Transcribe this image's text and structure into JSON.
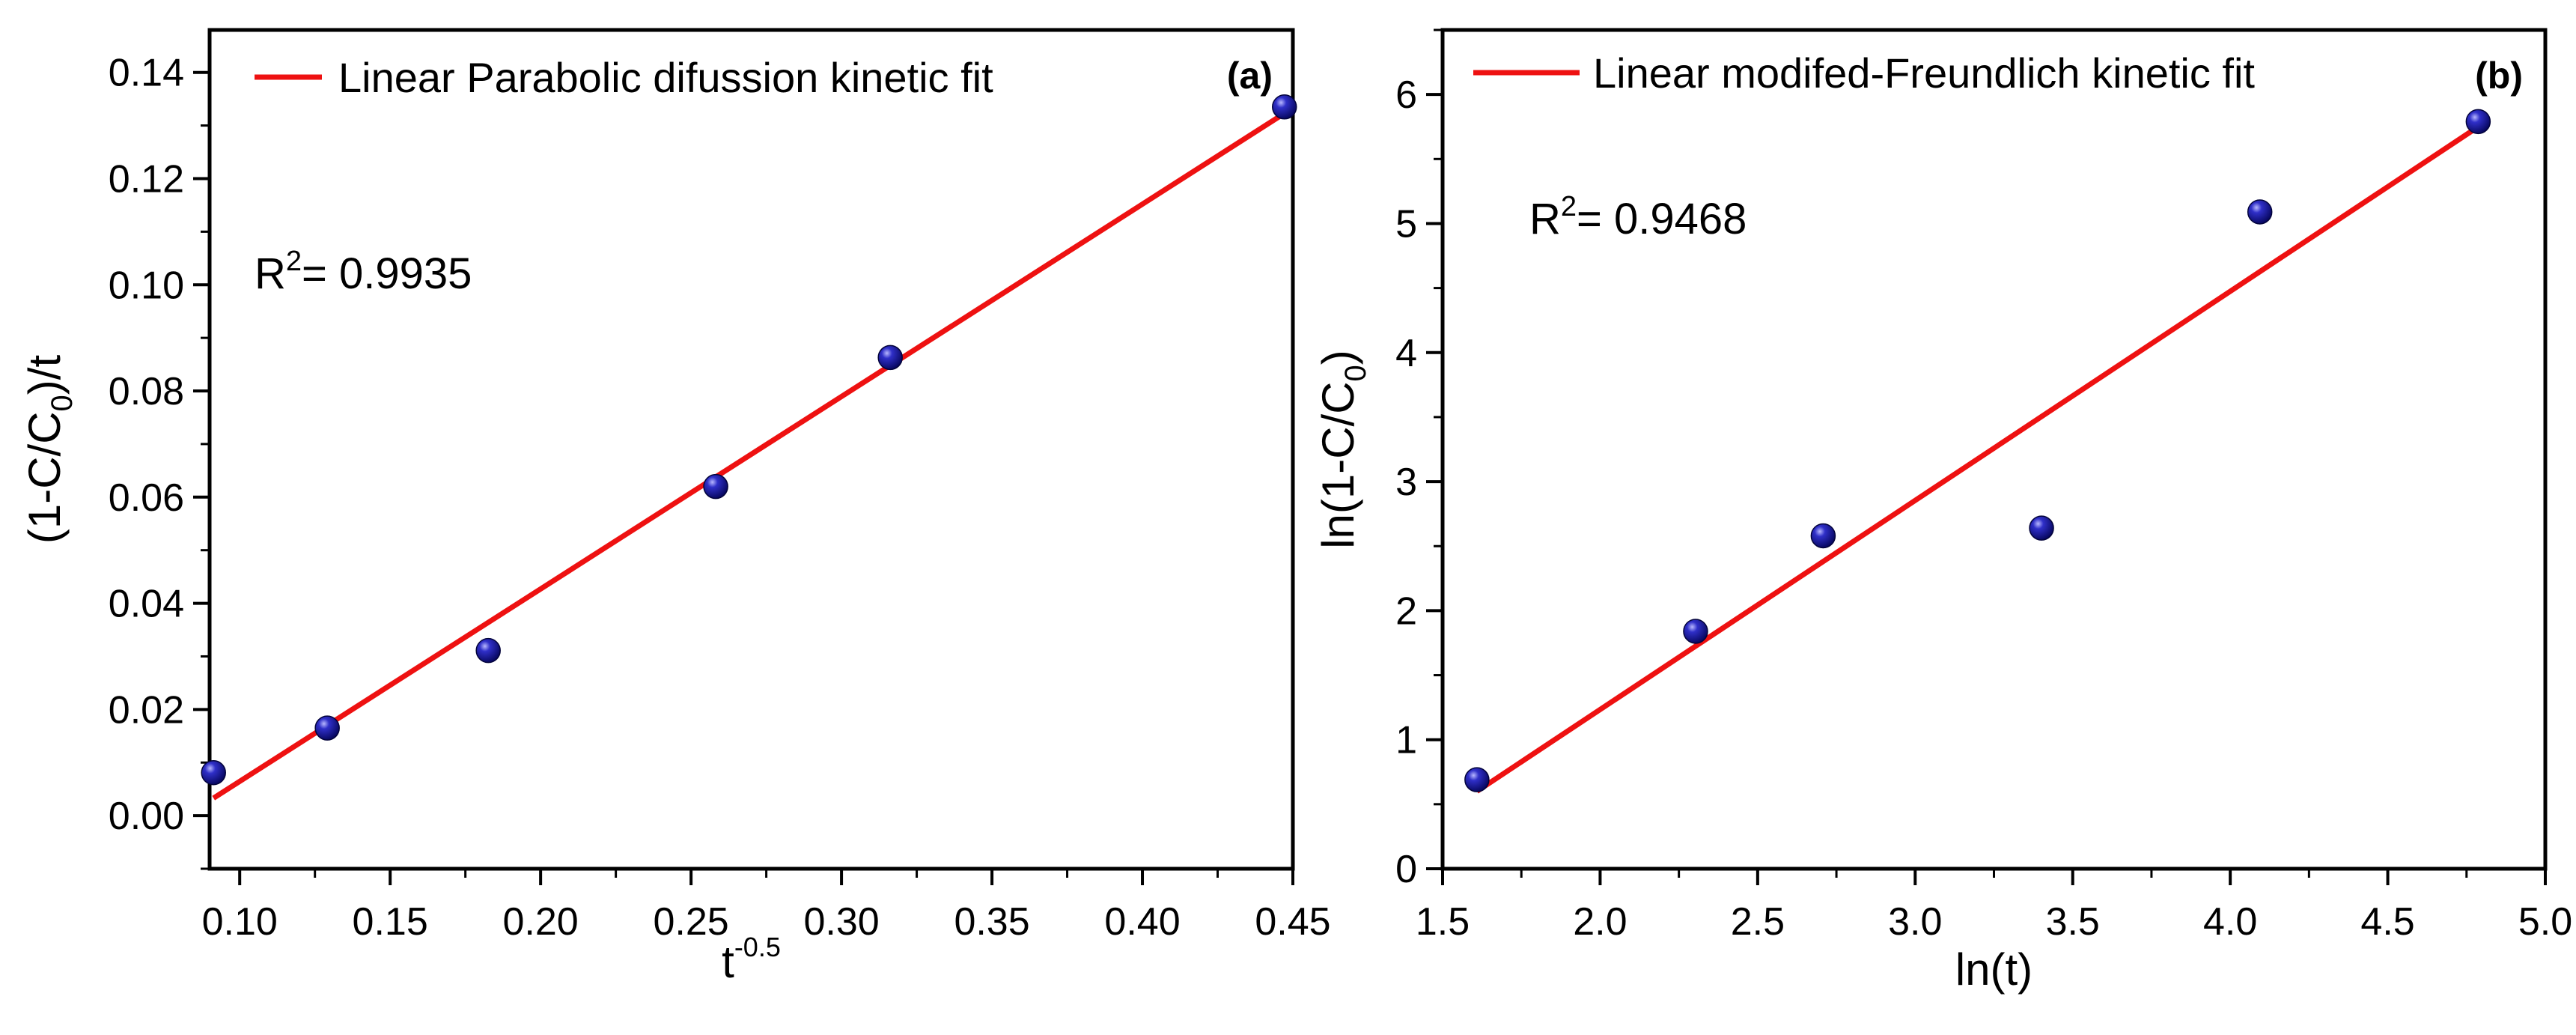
{
  "chart_data": [
    {
      "type": "scatter",
      "panel_label": "(a)",
      "xlabel": {
        "base": "t",
        "sup": "-0.5"
      },
      "ylabel": {
        "pre": "(1-C/C",
        "sub": "0",
        "post": ")/t"
      },
      "xlim": [
        0.09,
        0.45
      ],
      "ylim": [
        -0.01,
        0.148
      ],
      "xticks": [
        0.1,
        0.15,
        0.2,
        0.25,
        0.3,
        0.35,
        0.4,
        0.45
      ],
      "xtick_labels": [
        "0.10",
        "0.15",
        "0.20",
        "0.25",
        "0.30",
        "0.35",
        "0.40",
        "0.45"
      ],
      "yticks": [
        0.0,
        0.02,
        0.04,
        0.06,
        0.08,
        0.1,
        0.12,
        0.14
      ],
      "ytick_labels": [
        "0.00",
        "0.02",
        "0.04",
        "0.06",
        "0.08",
        "0.10",
        "0.12",
        "0.14"
      ],
      "legend": {
        "label": "Linear Parabolic difussion kinetic fit",
        "position": "top-left"
      },
      "r2": {
        "pre": "R",
        "sup": "2",
        "post": "= 0.9935"
      },
      "points": {
        "x": [
          0.0913,
          0.1291,
          0.1826,
          0.2582,
          0.3162,
          0.4472
        ],
        "y": [
          0.0081,
          0.0165,
          0.0311,
          0.062,
          0.0863,
          0.1335
        ]
      },
      "fit": {
        "x": [
          0.0913,
          0.4472
        ],
        "y": [
          0.0033,
          0.1323
        ]
      },
      "colors": {
        "line": "#ee1111",
        "marker": "#0a0a7a",
        "marker_highlight": "#8080ff"
      }
    },
    {
      "type": "scatter",
      "panel_label": "(b)",
      "xlabel": {
        "base": "ln(t)",
        "sup": ""
      },
      "ylabel": {
        "pre": "ln(1-C/C",
        "sub": "0",
        "post": ")"
      },
      "xlim": [
        1.5,
        5.0
      ],
      "ylim": [
        0,
        6.5
      ],
      "xticks": [
        1.5,
        2.0,
        2.5,
        3.0,
        3.5,
        4.0,
        4.5,
        5.0
      ],
      "xtick_labels": [
        "1.5",
        "2.0",
        "2.5",
        "3.0",
        "3.5",
        "4.0",
        "4.5",
        "5.0"
      ],
      "yticks": [
        0,
        1,
        2,
        3,
        4,
        5,
        6
      ],
      "ytick_labels": [
        "0",
        "1",
        "2",
        "3",
        "4",
        "5",
        "6"
      ],
      "legend": {
        "label": "Linear modifed-Freundlich kinetic fit",
        "position": "top-left"
      },
      "r2": {
        "pre": "R",
        "sup": "2",
        "post": "= 0.9468"
      },
      "points": {
        "x": [
          1.609,
          2.303,
          2.708,
          3.401,
          4.094,
          4.787
        ],
        "y": [
          0.69,
          1.84,
          2.58,
          2.64,
          5.09,
          5.79
        ]
      },
      "fit": {
        "x": [
          1.609,
          4.787
        ],
        "y": [
          0.6,
          5.75
        ]
      },
      "colors": {
        "line": "#ee1111",
        "marker": "#0a0a7a",
        "marker_highlight": "#8080ff"
      }
    }
  ]
}
